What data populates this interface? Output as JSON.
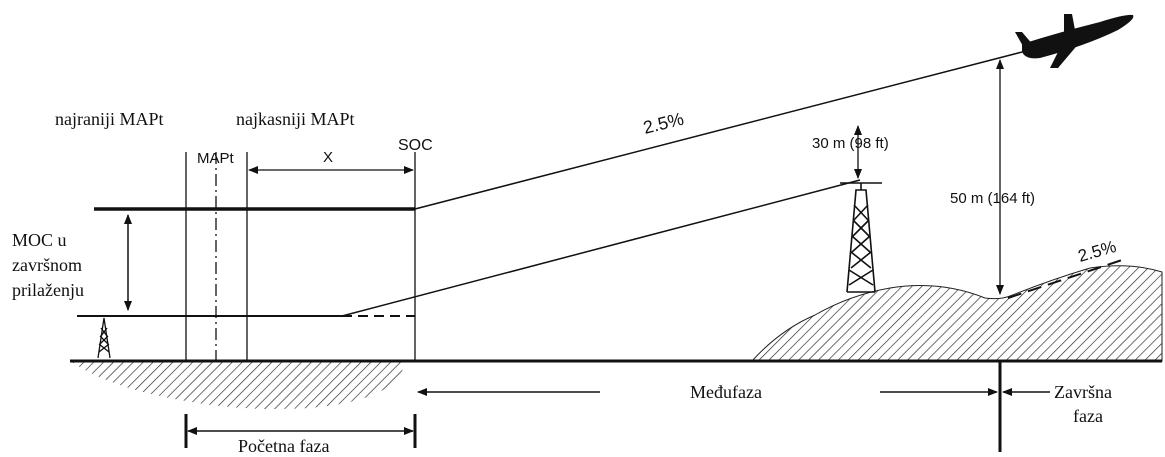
{
  "labels": {
    "earliest_mapt": "najraniji MAPt",
    "latest_mapt": "najkasniji MAPt",
    "mapt": "MAPt",
    "x": "X",
    "soc": "SOC",
    "gradient_main": "2.5%",
    "gradient_terrain": "2.5%",
    "clearance_30": "30 m (98 ft)",
    "clearance_50": "50 m (164 ft)",
    "moc_lines": [
      "MOC u",
      "završnom",
      "prilaženju"
    ],
    "intermediate_phase": "Međufaza",
    "final_phase_lines": [
      "Završna",
      "faza"
    ],
    "initial_phase": "Početna faza"
  },
  "colors": {
    "ink": "#111111",
    "background": "#ffffff"
  }
}
